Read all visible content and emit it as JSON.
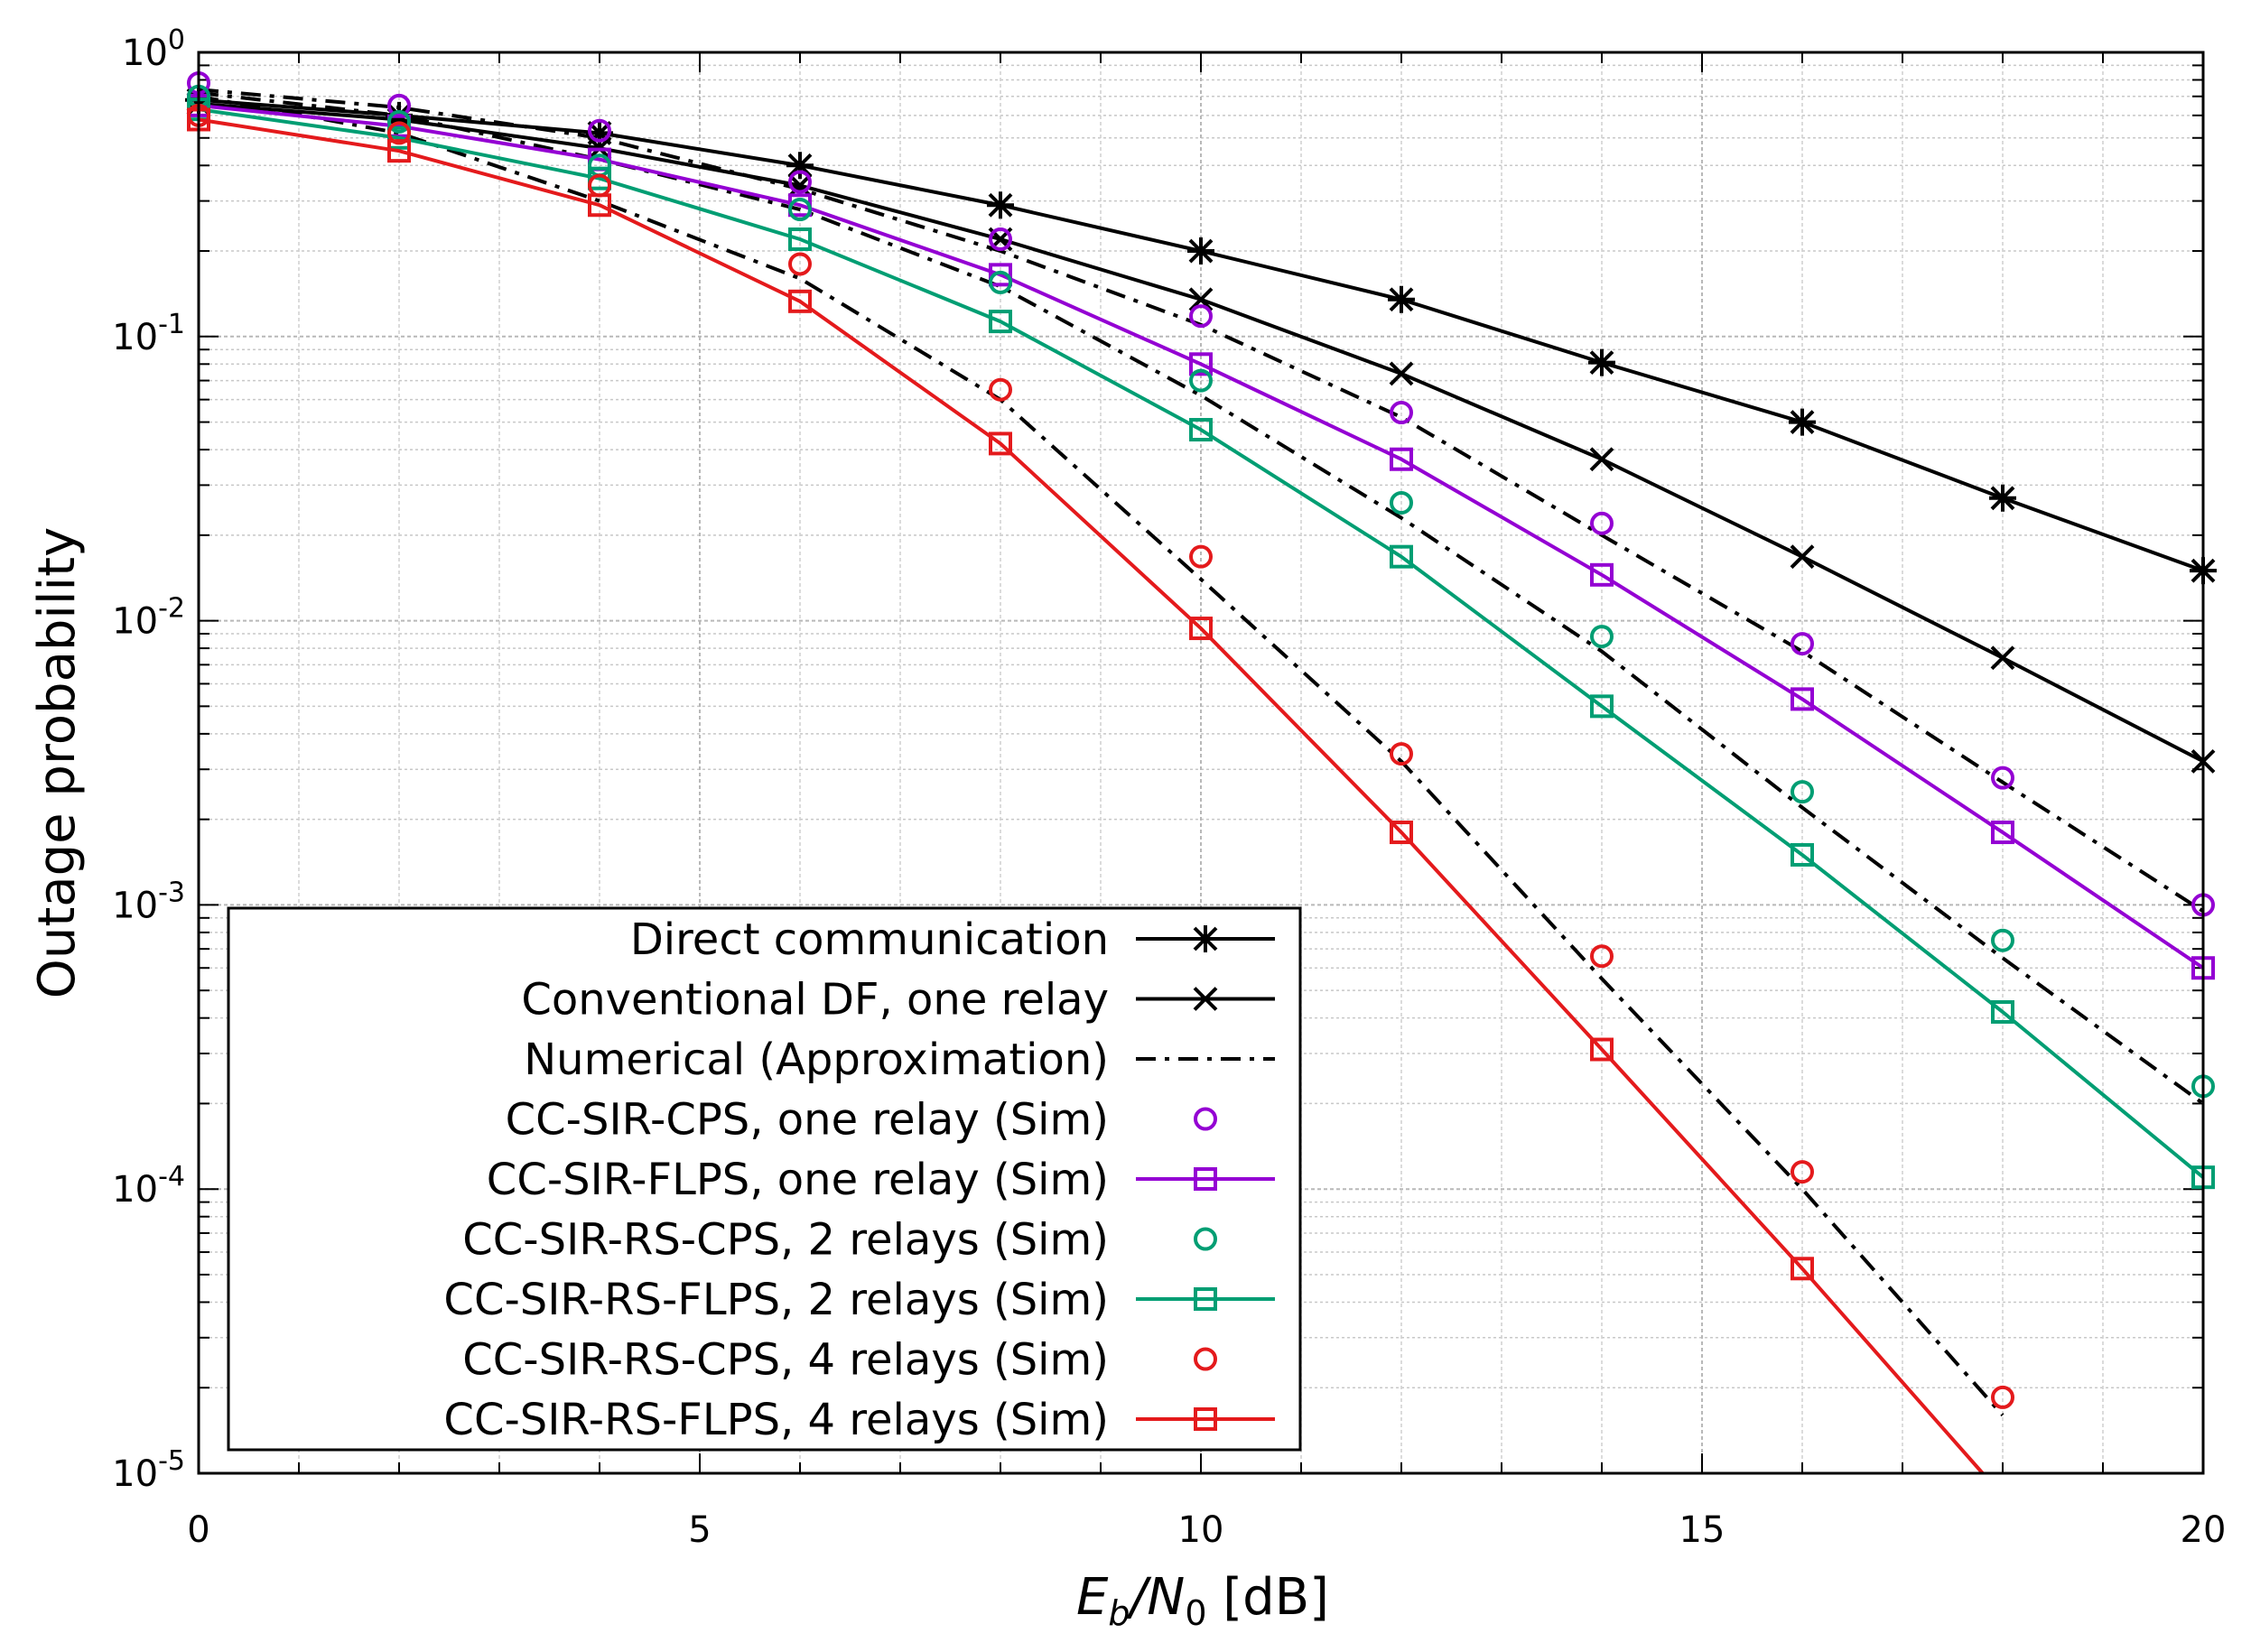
{
  "chart_data": {
    "type": "line",
    "title": "",
    "xlabel": "E_b/N_0 [dB]",
    "xlabel_parts": {
      "e": "E",
      "b": "b",
      "slash": "/N",
      "zero": "0",
      "unit": " [dB]"
    },
    "ylabel": "Outage probability",
    "xlim": [
      0,
      20
    ],
    "ylim": [
      1e-05,
      1
    ],
    "yscale": "log",
    "grid": true,
    "legend_position": "bottom-left",
    "x_ticks": [
      {
        "value": 0,
        "label": "0"
      },
      {
        "value": 5,
        "label": "5"
      },
      {
        "value": 10,
        "label": "10"
      },
      {
        "value": 15,
        "label": "15"
      },
      {
        "value": 20,
        "label": "20"
      }
    ],
    "y_ticks": [
      {
        "value": 1,
        "base": "10",
        "exp": "0"
      },
      {
        "value": 0.1,
        "base": "10",
        "exp": "-1"
      },
      {
        "value": 0.01,
        "base": "10",
        "exp": "-2"
      },
      {
        "value": 0.001,
        "base": "10",
        "exp": "-3"
      },
      {
        "value": 0.0001,
        "base": "10",
        "exp": "-4"
      },
      {
        "value": 1e-05,
        "base": "10",
        "exp": "-5"
      }
    ],
    "series": [
      {
        "id": "direct",
        "name": "Direct communication",
        "color": "#000000",
        "line": "solid",
        "marker": "asterisk",
        "x": [
          0,
          2,
          4,
          6,
          8,
          10,
          12,
          14,
          16,
          18,
          20
        ],
        "values": [
          0.68,
          0.6,
          0.52,
          0.4,
          0.29,
          0.2,
          0.135,
          0.081,
          0.05,
          0.027,
          0.015
        ]
      },
      {
        "id": "conv_df",
        "name": "Conventional DF, one relay",
        "color": "#000000",
        "line": "solid",
        "marker": "cross",
        "x": [
          0,
          2,
          4,
          6,
          8,
          10,
          12,
          14,
          16,
          18,
          20
        ],
        "values": [
          0.66,
          0.58,
          0.46,
          0.34,
          0.22,
          0.135,
          0.074,
          0.037,
          0.0168,
          0.0074,
          0.0032
        ]
      },
      {
        "id": "approx_1",
        "name": "Numerical (Approximation)",
        "color": "#000000",
        "line": "dashdot",
        "marker": "none",
        "x": [
          0,
          2,
          4,
          6,
          8,
          10,
          12,
          14,
          16,
          18,
          20
        ],
        "values": [
          0.74,
          0.64,
          0.5,
          0.33,
          0.2,
          0.11,
          0.052,
          0.02,
          0.0078,
          0.0027,
          0.00095
        ]
      },
      {
        "id": "approx_2",
        "name": "",
        "color": "#000000",
        "line": "dashdot",
        "marker": "none",
        "x": [
          0,
          2,
          4,
          6,
          8,
          10,
          12,
          14,
          16,
          18,
          20
        ],
        "values": [
          0.72,
          0.6,
          0.42,
          0.28,
          0.15,
          0.062,
          0.023,
          0.0078,
          0.0022,
          0.00065,
          0.0002
        ]
      },
      {
        "id": "approx_4",
        "name": "",
        "color": "#000000",
        "line": "dashdot",
        "marker": "none",
        "x": [
          0,
          2,
          4,
          6,
          8,
          10,
          12,
          14,
          16,
          18
        ],
        "values": [
          0.7,
          0.52,
          0.3,
          0.16,
          0.06,
          0.014,
          0.0032,
          0.00055,
          0.0001,
          1.6e-05
        ]
      },
      {
        "id": "cps_1",
        "name": "CC-SIR-CPS, one relay (Sim)",
        "color": "#9400D3",
        "line": "none",
        "marker": "circle",
        "x": [
          0,
          2,
          4,
          6,
          8,
          10,
          12,
          14,
          16,
          18,
          20
        ],
        "values": [
          0.78,
          0.65,
          0.53,
          0.35,
          0.22,
          0.118,
          0.054,
          0.022,
          0.0083,
          0.0028,
          0.001
        ]
      },
      {
        "id": "flps_1",
        "name": "CC-SIR-FLPS, one relay (Sim)",
        "color": "#9400D3",
        "line": "solid",
        "marker": "square",
        "x": [
          0,
          2,
          4,
          6,
          8,
          10,
          12,
          14,
          16,
          18,
          20
        ],
        "values": [
          0.65,
          0.55,
          0.42,
          0.29,
          0.165,
          0.08,
          0.037,
          0.0145,
          0.0053,
          0.0018,
          0.0006
        ]
      },
      {
        "id": "cps_2",
        "name": "CC-SIR-RS-CPS, 2 relays (Sim)",
        "color": "#009E73",
        "line": "none",
        "marker": "circle",
        "x": [
          0,
          2,
          4,
          6,
          8,
          10,
          12,
          14,
          16,
          18,
          20
        ],
        "values": [
          0.7,
          0.57,
          0.4,
          0.28,
          0.155,
          0.07,
          0.026,
          0.0088,
          0.0025,
          0.00075,
          0.00023
        ]
      },
      {
        "id": "flps_2",
        "name": "CC-SIR-RS-FLPS, 2 relays (Sim)",
        "color": "#009E73",
        "line": "solid",
        "marker": "square",
        "x": [
          0,
          2,
          4,
          6,
          8,
          10,
          12,
          14,
          16,
          18,
          20
        ],
        "values": [
          0.63,
          0.5,
          0.36,
          0.22,
          0.113,
          0.047,
          0.0168,
          0.005,
          0.0015,
          0.00042,
          0.00011
        ]
      },
      {
        "id": "cps_4",
        "name": "CC-SIR-RS-CPS, 4 relays (Sim)",
        "color": "#E41A1C",
        "line": "none",
        "marker": "circle",
        "x": [
          0,
          2,
          4,
          6,
          8,
          10,
          12,
          14,
          16,
          18
        ],
        "values": [
          0.6,
          0.52,
          0.34,
          0.18,
          0.065,
          0.0168,
          0.0034,
          0.00066,
          0.000115,
          1.85e-05
        ]
      },
      {
        "id": "flps_4",
        "name": "CC-SIR-RS-FLPS, 4 relays (Sim)",
        "color": "#E41A1C",
        "line": "solid",
        "marker": "square",
        "x": [
          0,
          2,
          4,
          6,
          8,
          10,
          12,
          14,
          16,
          17.8
        ],
        "values": [
          0.58,
          0.45,
          0.29,
          0.133,
          0.042,
          0.0094,
          0.0018,
          0.00031,
          5.25e-05,
          1e-05
        ]
      }
    ],
    "legend": [
      {
        "label": "Direct communication",
        "series": "direct"
      },
      {
        "label": "Conventional DF, one relay",
        "series": "conv_df"
      },
      {
        "label": "Numerical (Approximation)",
        "series": "approx_1"
      },
      {
        "label": "CC-SIR-CPS, one relay (Sim)",
        "series": "cps_1"
      },
      {
        "label": "CC-SIR-FLPS, one relay (Sim)",
        "series": "flps_1"
      },
      {
        "label": "CC-SIR-RS-CPS, 2 relays (Sim)",
        "series": "cps_2"
      },
      {
        "label": "CC-SIR-RS-FLPS, 2 relays (Sim)",
        "series": "flps_2"
      },
      {
        "label": "CC-SIR-RS-CPS, 4 relays (Sim)",
        "series": "cps_4"
      },
      {
        "label": "CC-SIR-RS-FLPS, 4 relays (Sim)",
        "series": "flps_4"
      }
    ]
  }
}
